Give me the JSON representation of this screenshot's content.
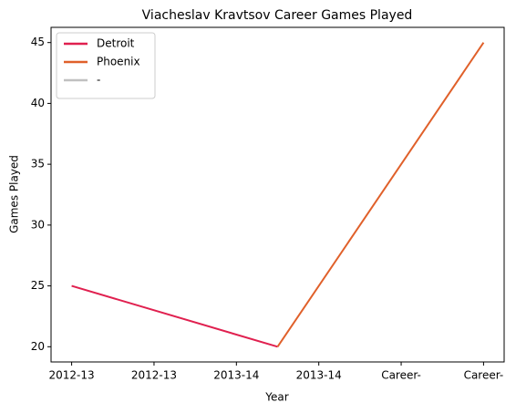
{
  "chart_data": {
    "type": "line",
    "title": "Viacheslav Kravtsov Career Games Played",
    "xlabel": "Year",
    "ylabel": "Games Played",
    "series": [
      {
        "name": "Detroit",
        "color": "#e0204f",
        "x": [
          0,
          2.5
        ],
        "values": [
          25,
          20
        ]
      },
      {
        "name": "Phoenix",
        "color": "#e0602a",
        "x": [
          2.5,
          5
        ],
        "values": [
          20,
          45
        ]
      },
      {
        "name": "-",
        "color": "#c0c0c0",
        "x": [
          2.5,
          5
        ],
        "values": [
          null,
          null
        ]
      }
    ],
    "xlim": [
      -0.25,
      5.25
    ],
    "xticks": [
      {
        "value": 0,
        "label": "2012-13"
      },
      {
        "value": 1,
        "label": "2012-13"
      },
      {
        "value": 2,
        "label": "2013-14"
      },
      {
        "value": 3,
        "label": "2013-14"
      },
      {
        "value": 4,
        "label": "Career-"
      },
      {
        "value": 5,
        "label": "Career-"
      }
    ],
    "ylim": [
      18.75,
      46.25
    ],
    "yticks": [
      20,
      25,
      30,
      35,
      40,
      45
    ],
    "legend": "upper left"
  }
}
